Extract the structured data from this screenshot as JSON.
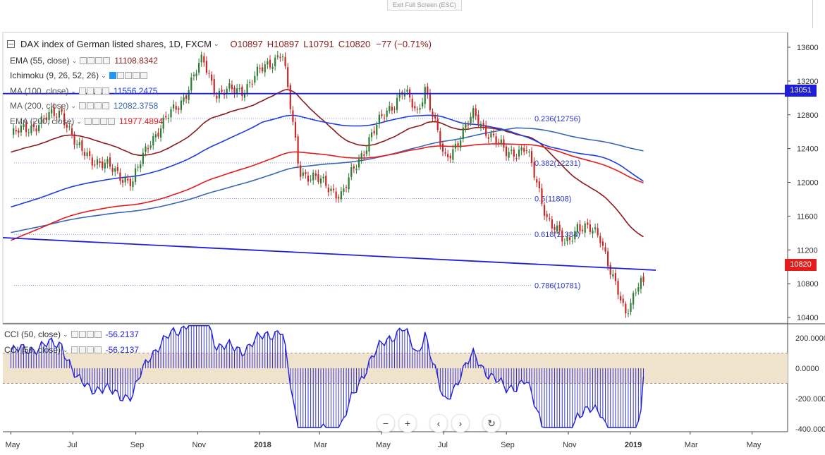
{
  "toolbar": {
    "exit_fullscreen": "Exit Full Screen (ESC)"
  },
  "header": {
    "collapse_icon": "minus-box-icon",
    "symbol_title": "DAX index of German listed shares, 1D, FXCM",
    "ohlc": {
      "open": "O10897",
      "high": "H10897",
      "low": "L10791",
      "close": "C10820",
      "change": "−77 (−0.71%)"
    }
  },
  "indicators": [
    {
      "label": "EMA (55, close)",
      "value": "11108.8342",
      "color": "#8b1a1a"
    },
    {
      "label": "Ichimoku (9, 26, 52, 26)",
      "value": "",
      "color": "#2196f3"
    },
    {
      "label": "MA (100, close)",
      "value": "11556.2475",
      "color": "#1f3de0"
    },
    {
      "label": "MA (200, close)",
      "value": "12082.3758",
      "color": "#3b65b5"
    },
    {
      "label": "EMA (200, close)",
      "value": "11977.4894",
      "color": "#e41c1c"
    }
  ],
  "cci": [
    {
      "label": "CCI (50, close)",
      "value": "-56.2137"
    },
    {
      "label": "CCI (50, close)",
      "value": "-56.2137"
    }
  ],
  "price_axis": [
    "13600",
    "13200",
    "12800",
    "12400",
    "12000",
    "11600",
    "11200",
    "10800",
    "10400"
  ],
  "price_tags": {
    "resistance": "13051",
    "last": "10820"
  },
  "cci_axis": [
    "200.0000",
    "0.0000",
    "-200.0000",
    "-400.0000"
  ],
  "time_axis": [
    "May",
    "Jul",
    "Sep",
    "Nov",
    "2018",
    "Mar",
    "May",
    "Jul",
    "Sep",
    "Nov",
    "2019",
    "Mar",
    "May"
  ],
  "fib_levels": [
    {
      "label": "0.236(12756)",
      "price": 12756
    },
    {
      "label": "0.382(12231)",
      "price": 12231
    },
    {
      "label": "0.5(11808)",
      "price": 11808
    },
    {
      "label": "0.618(11384)",
      "price": 11384
    },
    {
      "label": "0.786(10781)",
      "price": 10781
    }
  ],
  "colors": {
    "up": "#2e7d32",
    "down": "#c62828",
    "trend": "#1f1fd9",
    "cci": "#1f1fd9",
    "band": "#efe3cd"
  },
  "chart_data": {
    "type": "candlestick",
    "title": "DAX index of German listed shares, 1D, FXCM",
    "x_range": [
      "2017-05",
      "2019-05"
    ],
    "ylim": [
      10200,
      13750
    ],
    "last_close": 10820,
    "horizontal_line": 13051,
    "fibonacci": [
      12756,
      12231,
      11808,
      11384,
      10781
    ],
    "close_path": [
      {
        "x": "2017-05",
        "y": 12550
      },
      {
        "x": "2017-06-05",
        "y": 12750
      },
      {
        "x": "2017-06-20",
        "y": 12850
      },
      {
        "x": "2017-07-05",
        "y": 12400
      },
      {
        "x": "2017-08-01",
        "y": 12200
      },
      {
        "x": "2017-08-29",
        "y": 12000
      },
      {
        "x": "2017-09-15",
        "y": 12500
      },
      {
        "x": "2017-10-15",
        "y": 12950
      },
      {
        "x": "2017-11-06",
        "y": 13450
      },
      {
        "x": "2017-11-20",
        "y": 13050
      },
      {
        "x": "2017-12-15",
        "y": 13100
      },
      {
        "x": "2018-01-23",
        "y": 13560
      },
      {
        "x": "2018-02-09",
        "y": 12150
      },
      {
        "x": "2018-03-23",
        "y": 11850
      },
      {
        "x": "2018-04-20",
        "y": 12550
      },
      {
        "x": "2018-05-22",
        "y": 13100
      },
      {
        "x": "2018-06-05",
        "y": 12800
      },
      {
        "x": "2018-06-13",
        "y": 13150
      },
      {
        "x": "2018-07-02",
        "y": 12250
      },
      {
        "x": "2018-07-31",
        "y": 12800
      },
      {
        "x": "2018-08-31",
        "y": 12350
      },
      {
        "x": "2018-09-20",
        "y": 12400
      },
      {
        "x": "2018-10-11",
        "y": 11600
      },
      {
        "x": "2018-10-29",
        "y": 11250
      },
      {
        "x": "2018-11-10",
        "y": 11500
      },
      {
        "x": "2018-12-03",
        "y": 11350
      },
      {
        "x": "2018-12-27",
        "y": 10400
      },
      {
        "x": "2019-01-10",
        "y": 10880
      },
      {
        "x": "2019-01-14",
        "y": 10820
      }
    ],
    "moving_averages": [
      {
        "name": "EMA (55, close)",
        "last": 11108.8342
      },
      {
        "name": "MA (100, close)",
        "last": 11556.2475
      },
      {
        "name": "MA (200, close)",
        "last": 12082.3758
      },
      {
        "name": "EMA (200, close)",
        "last": 11977.4894
      }
    ],
    "cci_last": -56.2137,
    "cci_band": [
      -100,
      100
    ]
  }
}
